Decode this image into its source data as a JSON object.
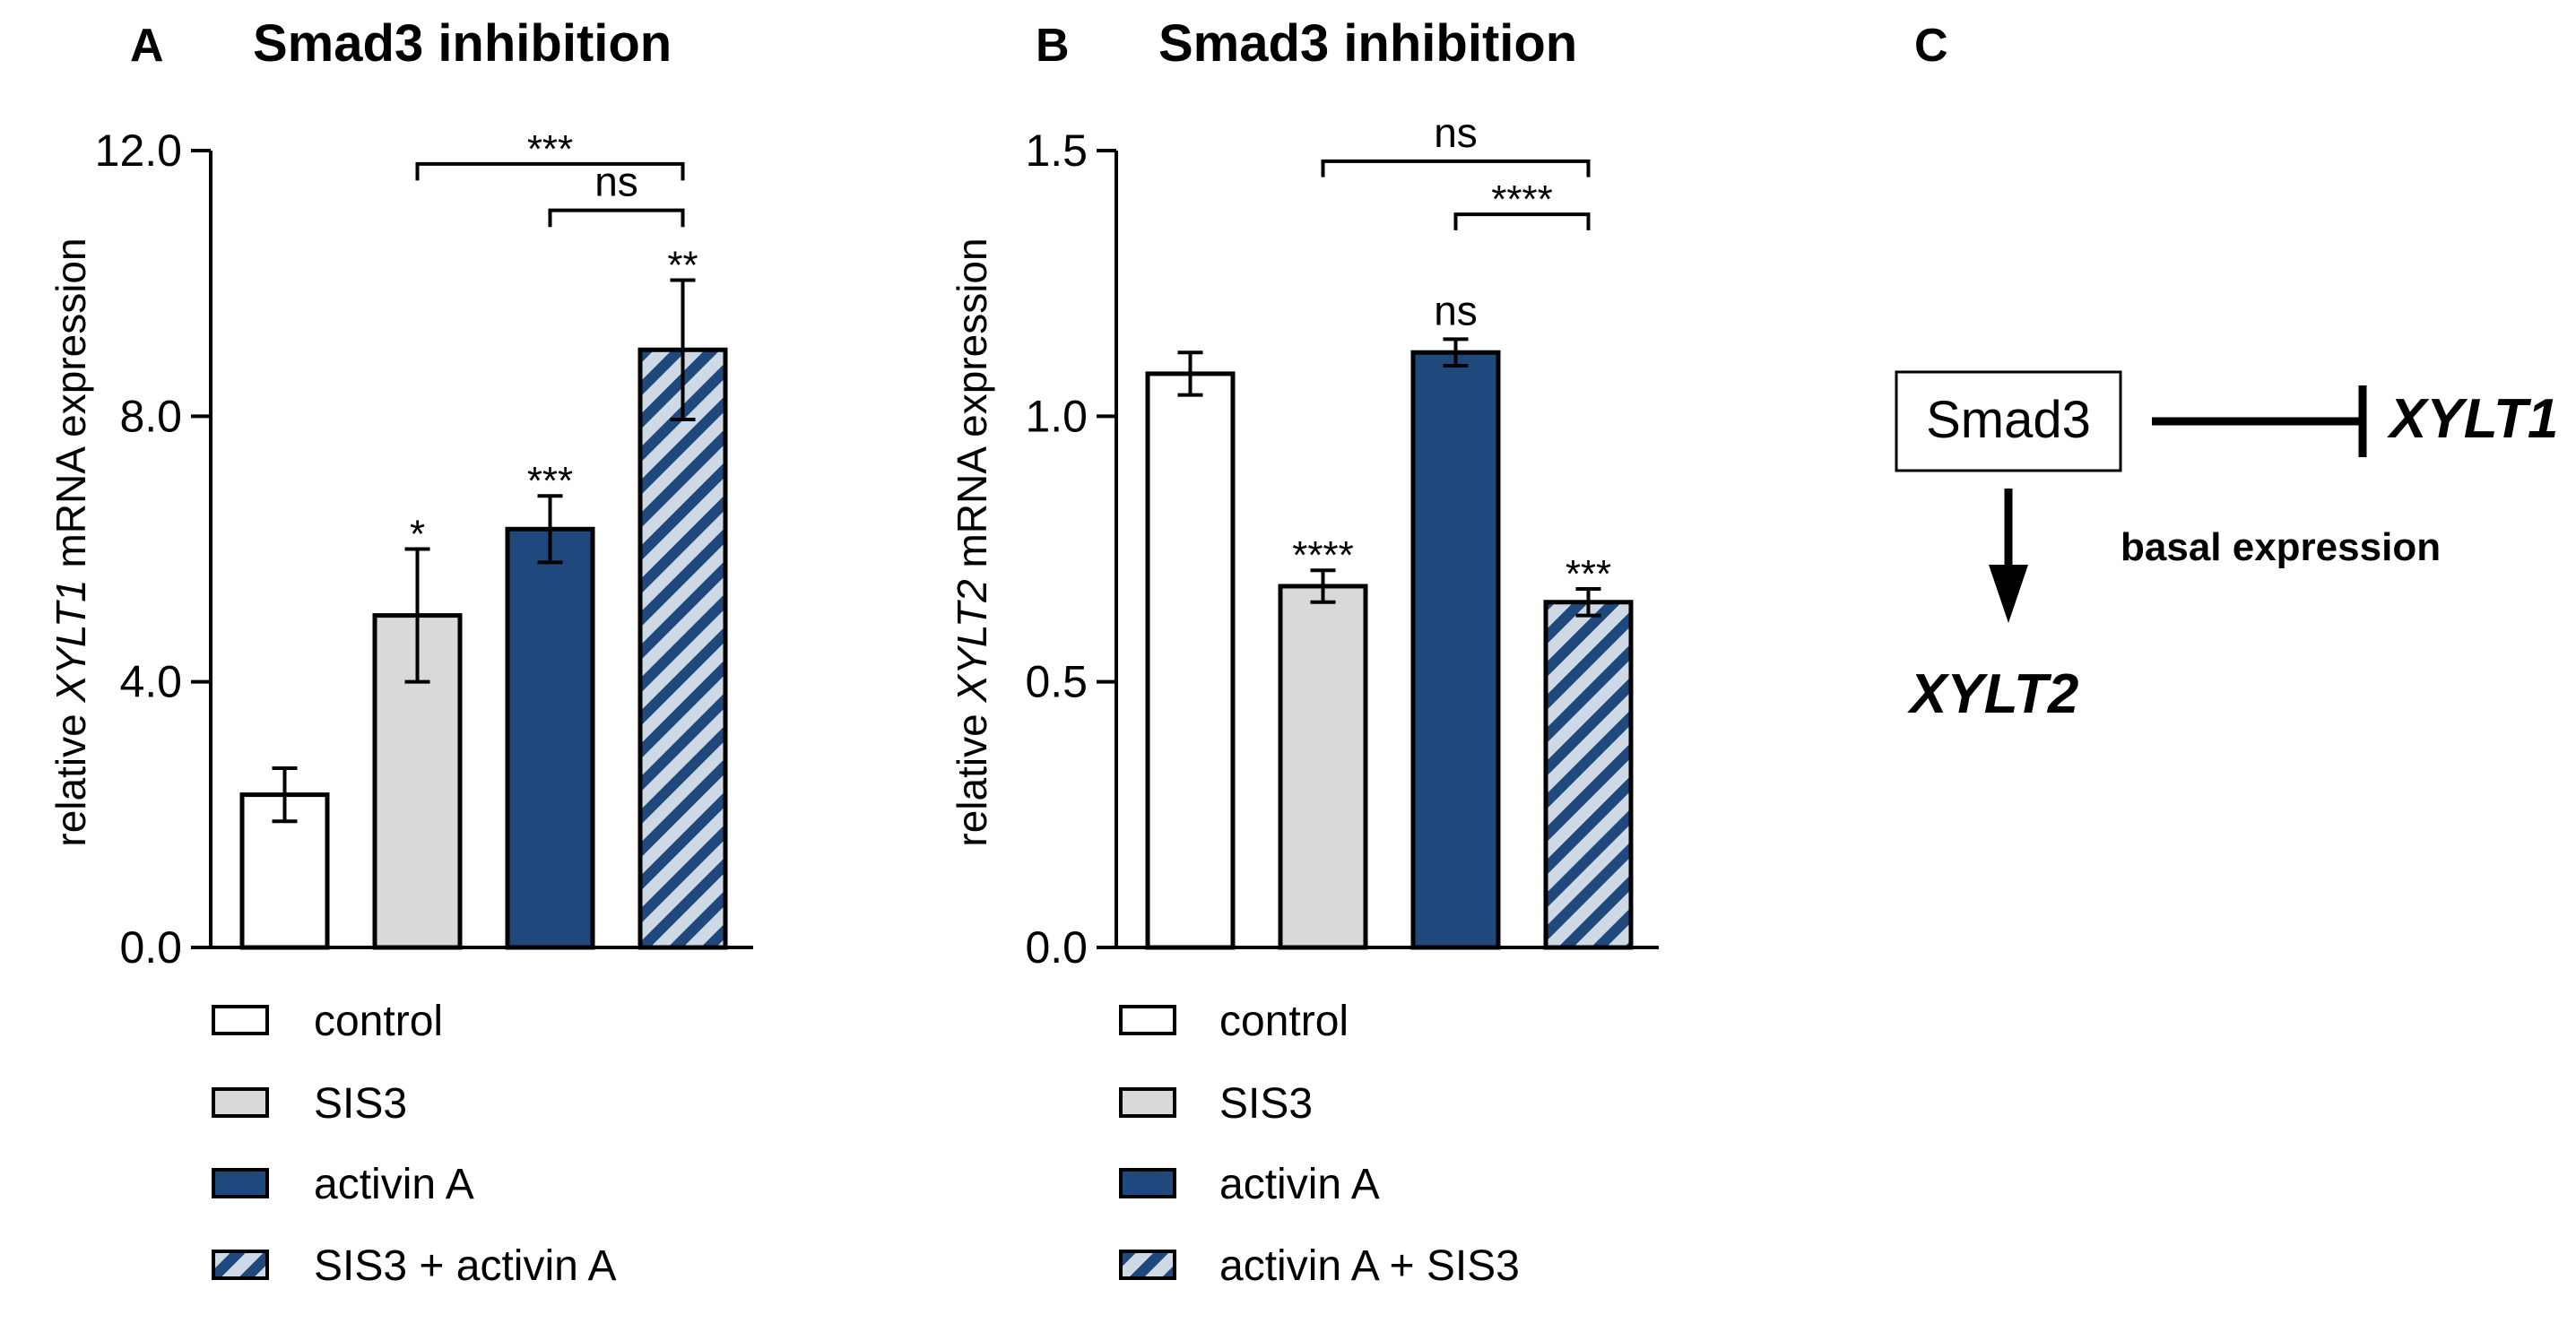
{
  "colors": {
    "control": "#ffffff",
    "sis3": "#d9d9d9",
    "activin": "#1f497d",
    "hatch_stripe": "#1f497d",
    "hatch_bg": "#cfd9e6",
    "stroke": "#000000"
  },
  "chart_data": [
    {
      "panel": "A",
      "type": "bar",
      "title": "Smad3 inhibition",
      "ylabel_pre": "relative ",
      "ylabel_gene": "XYLT1",
      "ylabel_post": " mRNA expression",
      "ylim": [
        0,
        12
      ],
      "yticks": [
        0,
        4,
        8,
        12
      ],
      "ytick_labels": [
        "0.0",
        "4.0",
        "8.0",
        "12.0"
      ],
      "categories": [
        "control",
        "SIS3",
        "activin A",
        "SIS3 + activin A"
      ],
      "values": [
        2.3,
        5.0,
        6.3,
        9.0
      ],
      "errors": [
        0.4,
        1.0,
        0.5,
        1.05
      ],
      "fills": [
        "control",
        "sis3",
        "activin",
        "hatch"
      ],
      "bar_sig": [
        "",
        "*",
        "***",
        "**"
      ],
      "brackets": [
        {
          "from": 1,
          "to": 3,
          "label": "***",
          "y": 11.8,
          "tick": 0.25
        },
        {
          "from": 2,
          "to": 3,
          "label": "ns",
          "y": 11.1,
          "tick": 0.25
        }
      ],
      "legend": [
        "control",
        "SIS3",
        "activin A",
        "SIS3 + activin A"
      ]
    },
    {
      "panel": "B",
      "type": "bar",
      "title": "Smad3 inhibition",
      "ylabel_pre": "relative ",
      "ylabel_gene": "XYLT2",
      "ylabel_post": " mRNA expression",
      "ylim": [
        0,
        1.5
      ],
      "yticks": [
        0,
        0.5,
        1.0,
        1.5
      ],
      "ytick_labels": [
        "0.0",
        "0.5",
        "1.0",
        "1.5"
      ],
      "categories": [
        "control",
        "SIS3",
        "activin A",
        "activin A + SIS3"
      ],
      "values": [
        1.08,
        0.68,
        1.12,
        0.65
      ],
      "errors": [
        0.04,
        0.03,
        0.025,
        0.025
      ],
      "fills": [
        "control",
        "sis3",
        "activin",
        "hatch"
      ],
      "bar_sig": [
        "",
        "****",
        "ns",
        "***"
      ],
      "brackets": [
        {
          "from": 1,
          "to": 3,
          "label": "ns",
          "y": 1.48,
          "tick": 0.03
        },
        {
          "from": 2,
          "to": 3,
          "label": "****",
          "y": 1.38,
          "tick": 0.03
        }
      ],
      "legend": [
        "control",
        "SIS3",
        "activin A",
        "activin A + SIS3"
      ]
    }
  ],
  "panel_c": {
    "letter": "C",
    "box_label": "Smad3",
    "inhibited_gene": "XYLT1",
    "activated_gene": "XYLT2",
    "annotation": "basal expression"
  }
}
